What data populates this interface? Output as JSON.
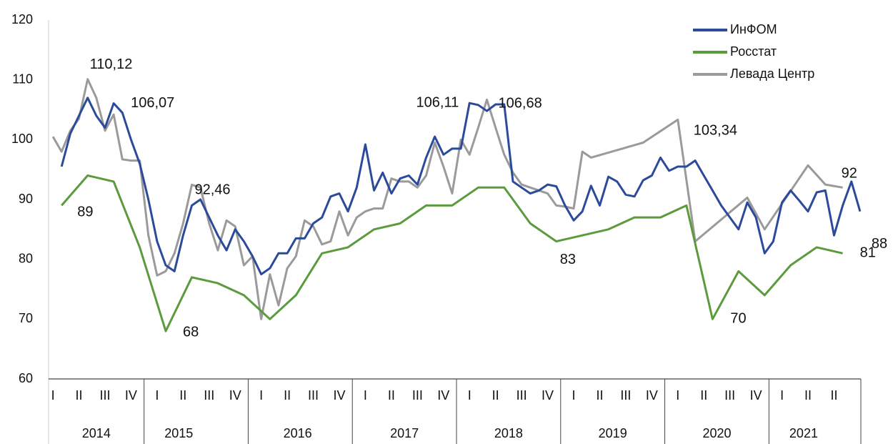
{
  "chart_data": {
    "type": "line",
    "xlim": [
      1,
      95
    ],
    "ylim": [
      60,
      120
    ],
    "yticks": [
      60,
      70,
      80,
      90,
      100,
      110,
      120
    ],
    "xticks": [
      {
        "value": 1.5,
        "label": "I"
      },
      {
        "value": 4.5,
        "label": "II"
      },
      {
        "value": 7.5,
        "label": "III"
      },
      {
        "value": 10.5,
        "label": "IV"
      },
      {
        "value": 13.5,
        "label": "I"
      },
      {
        "value": 16.5,
        "label": "II"
      },
      {
        "value": 19.5,
        "label": "III"
      },
      {
        "value": 22.5,
        "label": "IV"
      },
      {
        "value": 25.5,
        "label": "I"
      },
      {
        "value": 28.5,
        "label": "II"
      },
      {
        "value": 31.5,
        "label": "III"
      },
      {
        "value": 34.5,
        "label": "IV"
      },
      {
        "value": 37.5,
        "label": "I"
      },
      {
        "value": 40.5,
        "label": "II"
      },
      {
        "value": 43.5,
        "label": "III"
      },
      {
        "value": 46.5,
        "label": "IV"
      },
      {
        "value": 49.5,
        "label": "I"
      },
      {
        "value": 52.5,
        "label": "II"
      },
      {
        "value": 55.5,
        "label": "III"
      },
      {
        "value": 58.5,
        "label": "IV"
      },
      {
        "value": 61.5,
        "label": "I"
      },
      {
        "value": 64.5,
        "label": "II"
      },
      {
        "value": 67.5,
        "label": "III"
      },
      {
        "value": 70.5,
        "label": "IV"
      },
      {
        "value": 73.5,
        "label": "I"
      },
      {
        "value": 76.5,
        "label": "II"
      },
      {
        "value": 79.5,
        "label": "III"
      },
      {
        "value": 82.5,
        "label": "IV"
      },
      {
        "value": 85.5,
        "label": "I"
      },
      {
        "value": 88.5,
        "label": "II"
      },
      {
        "value": 91.5,
        "label": "II"
      }
    ],
    "year_ticks": [
      {
        "value": 6.5,
        "label": "2014"
      },
      {
        "value": 16,
        "label": "2015"
      },
      {
        "value": 29.7,
        "label": "2016"
      },
      {
        "value": 42,
        "label": "2017"
      },
      {
        "value": 54,
        "label": "2018"
      },
      {
        "value": 66,
        "label": "2019"
      },
      {
        "value": 78,
        "label": "2020"
      },
      {
        "value": 88,
        "label": "2021"
      }
    ],
    "year_bounds": [
      12,
      24,
      36,
      48,
      60,
      72,
      84
    ],
    "legend": "top-right",
    "grid": false,
    "series": [
      {
        "name": "ИнФОМ",
        "color": "#2b4a9a",
        "label_color": "#3a73b8",
        "x": [
          2.5,
          3.5,
          4.5,
          5.5,
          6.5,
          7.5,
          8.5,
          9.5,
          10.5,
          11.5,
          12.5,
          13.5,
          14.5,
          15.5,
          16.5,
          17.5,
          18.5,
          19.5,
          20.5,
          21.5,
          22.5,
          23.5,
          24.5,
          25.5,
          26.5,
          27.5,
          28.5,
          29.5,
          30.5,
          31.5,
          32.5,
          33.5,
          34.5,
          35.5,
          36.5,
          37.5,
          38.5,
          39.5,
          40.5,
          41.5,
          42.5,
          43.5,
          44.5,
          45.5,
          46.5,
          47.5,
          48.5,
          49.5,
          50.5,
          51.5,
          52.5,
          53.5,
          54.5,
          55.5,
          56.5,
          57.5,
          58.5,
          59.5,
          60.5,
          61.5,
          62.5,
          63.5,
          64.5,
          65.5,
          66.5,
          67.5,
          68.5,
          69.5,
          70.5,
          71.5,
          72.5,
          73.5,
          74.5,
          75.5,
          76.5,
          77.5,
          78.5,
          79.5,
          80.5,
          81.5,
          82.5,
          83.5,
          84.5,
          85.5,
          86.5,
          87.5,
          88.5,
          89.5,
          90.5,
          91.5,
          92.5,
          93.5,
          94.5
        ],
        "values": [
          95.5,
          101,
          104,
          107,
          104,
          102,
          106.07,
          104.5,
          100,
          96,
          90,
          83,
          79,
          78,
          84,
          89,
          90,
          87,
          84,
          81.5,
          85,
          83,
          80.5,
          77.5,
          78.5,
          81,
          81,
          83.5,
          83.5,
          86,
          87,
          90.5,
          91,
          88,
          92,
          99.2,
          91.5,
          94.5,
          91,
          93.5,
          94,
          92.5,
          97,
          100.5,
          97.5,
          98.5,
          98.5,
          106.11,
          105.8,
          104.8,
          105.9,
          105.9,
          93,
          92,
          91,
          91.5,
          92.5,
          92.2,
          89,
          86.5,
          88,
          92.3,
          89,
          93.8,
          93,
          90.8,
          90.5,
          93.2,
          94,
          97,
          94.8,
          95.5,
          95.5,
          96.5,
          94,
          91.5,
          89,
          87,
          85,
          89.5,
          87,
          81,
          83,
          89.5,
          91.5,
          89.8,
          88,
          91.2,
          91.5,
          84,
          89,
          93,
          88
        ],
        "value_labels": {
          "6": "106,07",
          "47": "106,11",
          "92": "88"
        }
      },
      {
        "name": "Росстат",
        "color": "#5b9b3d",
        "label_color": "#4e8c36",
        "x": [
          2.5,
          5.5,
          8.5,
          11.5,
          14.5,
          17.5,
          20.5,
          23.5,
          26.5,
          29.5,
          32.5,
          35.5,
          38.5,
          41.5,
          44.5,
          47.5,
          50.5,
          53.5,
          56.5,
          59.5,
          62.5,
          65.5,
          68.5,
          71.5,
          74.5,
          77.5,
          80.5,
          83.5,
          86.5,
          89.5,
          92.5
        ],
        "values": [
          89,
          94,
          93,
          82,
          68,
          77,
          76,
          74,
          70,
          74,
          81,
          82,
          85,
          86,
          89,
          89,
          92,
          92,
          86,
          83,
          84,
          85,
          87,
          87,
          89,
          70,
          78,
          74,
          79,
          82,
          81
        ],
        "value_labels": {
          "0": "89",
          "4": "68",
          "19": "83",
          "25": "70",
          "30": "81"
        }
      },
      {
        "name": "Левада Центр",
        "color": "#9a9a9a",
        "label_color": "#8c8c8c",
        "x": [
          1.5,
          2.5,
          3.5,
          4.5,
          5.5,
          6.5,
          7.5,
          8.5,
          9.5,
          10.5,
          11.5,
          12.5,
          13.5,
          14.5,
          15.5,
          16.5,
          17.5,
          18.5,
          19.5,
          20.5,
          21.5,
          22.5,
          23.5,
          24.5,
          25.5,
          26.5,
          27.5,
          28.5,
          29.5,
          30.5,
          31.5,
          32.5,
          33.5,
          34.5,
          35.5,
          36.5,
          37.5,
          38.5,
          39.5,
          40.5,
          41.5,
          42.5,
          43.5,
          44.5,
          45.5,
          46.5,
          47.5,
          48.5,
          49.5,
          50.5,
          51.5,
          52.5,
          53.5,
          54.5,
          55.5,
          56.5,
          57.5,
          58.5,
          59.5,
          60.5,
          61.5,
          62.5,
          63.5,
          69.5,
          73.5,
          75.5,
          81.5,
          83.5,
          88.5,
          90.5,
          92.5
        ],
        "values": [
          100.5,
          98,
          101.5,
          103.5,
          110.12,
          107,
          101.5,
          104.2,
          96.7,
          96.5,
          96.5,
          84,
          77.3,
          78,
          81,
          86,
          92.46,
          92,
          86,
          81.5,
          86.5,
          85.5,
          79,
          80.5,
          70,
          77.5,
          72.3,
          78.5,
          80.5,
          86.5,
          85.5,
          82.5,
          83,
          88,
          84,
          87,
          88,
          88.5,
          88.5,
          93.5,
          93,
          93,
          92,
          94,
          99.5,
          95.5,
          91,
          100,
          97.5,
          102,
          106.68,
          102,
          97.5,
          94.5,
          92.5,
          92,
          91.5,
          91,
          89,
          88.8,
          88.5,
          98,
          97,
          99.5,
          103.34,
          83,
          90.3,
          85,
          95.7,
          92.5,
          92
        ],
        "value_labels": {
          "4": "110,12",
          "16": "92,46",
          "50": "106,68",
          "64": "103,34",
          "70": "92"
        }
      }
    ]
  }
}
